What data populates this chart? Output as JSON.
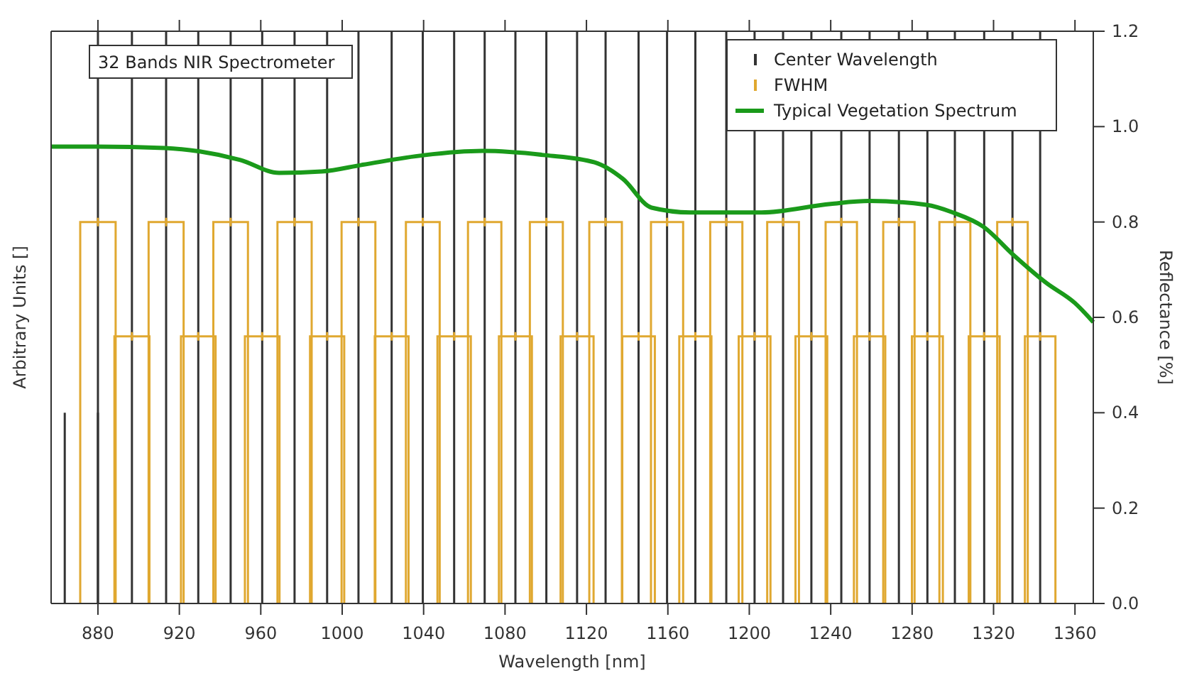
{
  "chart_data": {
    "type": "bar",
    "xlabel": "Wavelength [nm]",
    "ylabel": "Arbitrary Units []",
    "y2label": "Reflectance [%]",
    "xlim": [
      857,
      1369
    ],
    "xticks": [
      880,
      920,
      960,
      1000,
      1040,
      1080,
      1120,
      1160,
      1200,
      1240,
      1280,
      1320,
      1360
    ],
    "y2lim": [
      0,
      1.2
    ],
    "y2ticks": [
      {
        "value": 0,
        "label": "0.0"
      },
      {
        "value": 0.2,
        "label": "0.2"
      },
      {
        "value": 0.4,
        "label": "0.4"
      },
      {
        "value": 0.6,
        "label": "0.6"
      },
      {
        "value": 0.8,
        "label": "0.8"
      },
      {
        "value": 1,
        "label": "1.0"
      },
      {
        "value": 1.2,
        "label": "1.2"
      }
    ],
    "annotations": [
      "32 Bands NIR Spectrometer"
    ],
    "legend": "top right",
    "grid": false,
    "series": [
      {
        "name": "Center Wavelength",
        "axis": "y2",
        "color": "#333333",
        "x": [
          880,
          896.7,
          913.5,
          929.3,
          945.2,
          960.7,
          976.6,
          992.6,
          1008,
          1024.3,
          1039.6,
          1055,
          1070,
          1085.1,
          1100.3,
          1115.4,
          1129.4,
          1145.6,
          1159.6,
          1173.5,
          1188.7,
          1202.6,
          1216.6,
          1230.5,
          1245.2,
          1259.1,
          1273.5,
          1287.5,
          1301,
          1315.4,
          1329.3,
          1342.9
        ],
        "values": [
          1.2,
          1.2,
          1.2,
          1.2,
          1.2,
          1.2,
          1.2,
          1.2,
          1.2,
          1.2,
          1.2,
          1.2,
          1.2,
          1.2,
          1.2,
          1.2,
          1.2,
          1.2,
          1.2,
          1.2,
          1.2,
          1.2,
          1.2,
          1.2,
          1.2,
          1.2,
          1.2,
          1.2,
          1.2,
          1.2,
          1.2,
          1.2
        ]
      },
      {
        "axis": "y2",
        "color": "#333333",
        "x": [
          863.7,
          880
        ],
        "values": [
          0.4,
          0.4
        ]
      },
      {
        "name": "FWHM",
        "type": "scatter",
        "marker": "cross",
        "axis": "y2",
        "color": "#e0a830",
        "x": [
          880,
          896.7,
          913.5,
          929.3,
          945.2,
          960.7,
          976.6,
          992.6,
          1008,
          1024.3,
          1039.6,
          1055,
          1070,
          1085.1,
          1100.3,
          1115.4,
          1129.4,
          1145.6,
          1159.6,
          1173.5,
          1188.7,
          1202.6,
          1216.6,
          1230.5,
          1245.2,
          1259.1,
          1273.5,
          1287.5,
          1301,
          1315.4,
          1329.3,
          1342.9
        ],
        "values": [
          0.8,
          0.56,
          0.8,
          0.56,
          0.8,
          0.56,
          0.8,
          0.56,
          0.8,
          0.56,
          0.8,
          0.56,
          0.8,
          0.56,
          0.8,
          0.56,
          0.8,
          0.56,
          0.8,
          0.56,
          0.8,
          0.56,
          0.8,
          0.56,
          0.8,
          0.56,
          0.8,
          0.56,
          0.8,
          0.56,
          0.8,
          0.56
        ],
        "xerrors": [
          8.7,
          8.6,
          8.6,
          8.5,
          8.5,
          8.5,
          8.4,
          8.4,
          8.3,
          8.3,
          8.3,
          8.2,
          8.2,
          8.1,
          8.1,
          8.1,
          8,
          8,
          7.9,
          7.9,
          7.9,
          7.8,
          7.8,
          7.8,
          7.7,
          7.7,
          7.7,
          7.6,
          7.6,
          7.6,
          7.5,
          7.5
        ]
      },
      {
        "name": "Typical Vegetation Spectrum",
        "type": "line",
        "axis": "y2",
        "color": "#1a9a1a",
        "x": [
          857,
          880,
          913,
          930,
          950,
          969,
          990,
          1010,
          1040,
          1069,
          1100,
          1124,
          1138,
          1152,
          1171,
          1206,
          1240,
          1259,
          1287,
          1300,
          1315,
          1330,
          1346,
          1360,
          1369
        ],
        "values": [
          0.958,
          0.958,
          0.955,
          0.948,
          0.93,
          0.903,
          0.906,
          0.92,
          0.94,
          0.949,
          0.94,
          0.925,
          0.89,
          0.83,
          0.82,
          0.82,
          0.838,
          0.844,
          0.836,
          0.82,
          0.79,
          0.73,
          0.672,
          0.63,
          0.59
        ]
      }
    ]
  }
}
